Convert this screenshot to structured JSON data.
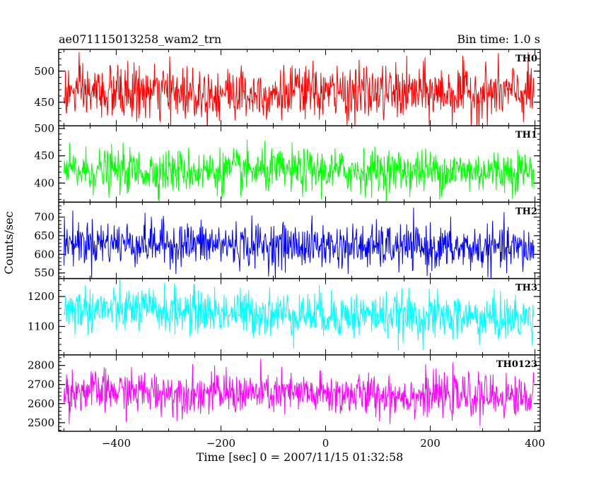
{
  "header": {
    "title": "ae071115013258_wam2_trn",
    "bin_time": "Bin time: 1.0 s"
  },
  "chart_data": {
    "type": "line",
    "xlabel": "Time [sec] 0 = 2007/11/15 01:32:58",
    "ylabel": "Counts/sec",
    "xlim": [
      -510,
      410
    ],
    "x_ticks": [
      -400,
      -200,
      0,
      200,
      400
    ],
    "x_data_range": [
      -500,
      398
    ],
    "bin_time_s": 1.0,
    "panels": [
      {
        "name": "TH0",
        "color": "#ff0000",
        "ylim": [
          412,
          535
        ],
        "y_ticks": [
          450,
          500
        ],
        "y_minor_step": 10,
        "mean": 465,
        "spread": 22,
        "trend": [
          0,
          0
        ]
      },
      {
        "name": "TH1",
        "color": "#00ff00",
        "ylim": [
          365,
          505
        ],
        "y_ticks": [
          400,
          450,
          500
        ],
        "y_minor_step": 10,
        "mean": 422,
        "spread": 20,
        "trend": [
          0,
          0
        ]
      },
      {
        "name": "TH2",
        "color": "#0000ff",
        "ylim": [
          535,
          740
        ],
        "y_ticks": [
          550,
          600,
          650,
          700
        ],
        "y_minor_step": 10,
        "mean": 618,
        "spread": 30,
        "trend": [
          15,
          -5
        ]
      },
      {
        "name": "TH3",
        "color": "#00ffff",
        "ylim": [
          1005,
          1260
        ],
        "y_ticks": [
          1100,
          1200
        ],
        "y_minor_step": 20,
        "mean": 1130,
        "spread": 38,
        "trend": [
          30,
          -5
        ]
      },
      {
        "name": "TH0123",
        "color": "#ff00ff",
        "ylim": [
          2455,
          2855
        ],
        "y_ticks": [
          2500,
          2600,
          2700,
          2800
        ],
        "y_minor_step": 20,
        "mean": 2625,
        "spread": 55,
        "trend": [
          40,
          10
        ]
      }
    ]
  }
}
